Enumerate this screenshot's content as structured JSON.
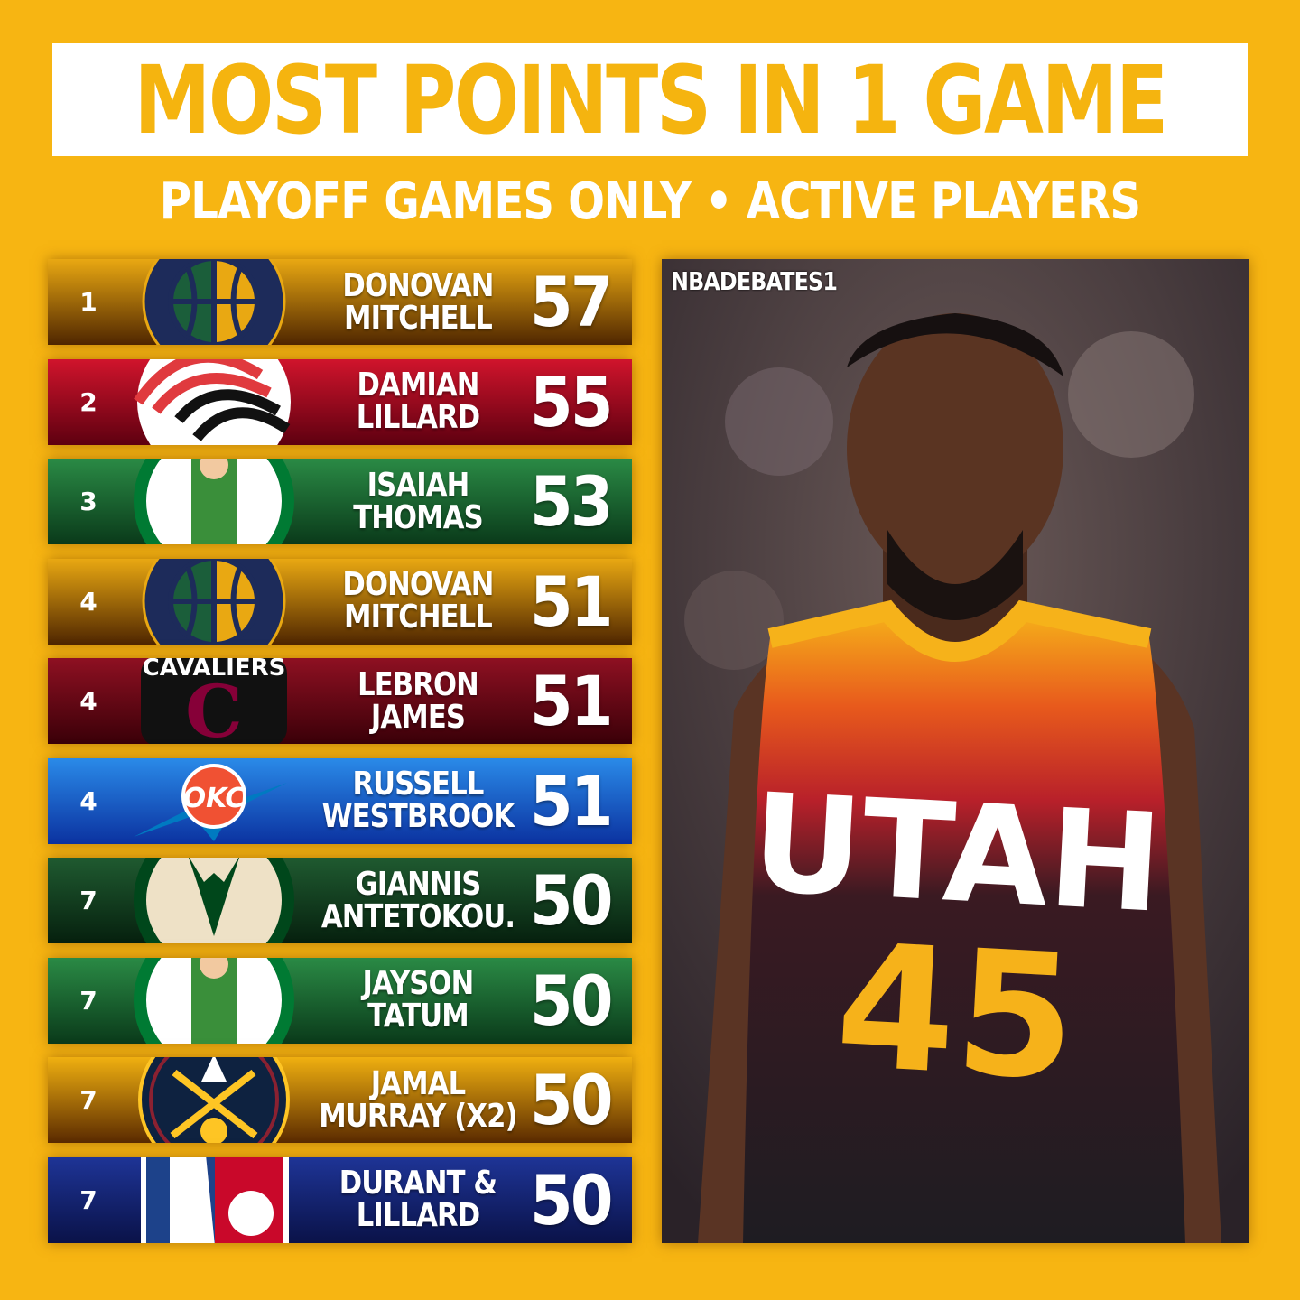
{
  "header": {
    "title": "MOST POINTS IN 1 GAME",
    "subtitle": "PLAYOFF GAMES ONLY • ACTIVE PLAYERS"
  },
  "rankings": [
    {
      "rank": "1",
      "line1": "DONOVAN",
      "line2": "MITCHELL",
      "points": "57",
      "team": "jazz",
      "c1": "#E9A812",
      "c2": "#4F2600"
    },
    {
      "rank": "2",
      "line1": "DAMIAN",
      "line2": "LILLARD",
      "points": "55",
      "team": "blazers",
      "c1": "#D0142C",
      "c2": "#5E0010"
    },
    {
      "rank": "3",
      "line1": "ISAIAH",
      "line2": "THOMAS",
      "points": "53",
      "team": "celtics",
      "c1": "#2A8A45",
      "c2": "#0A3A1A"
    },
    {
      "rank": "4",
      "line1": "DONOVAN",
      "line2": "MITCHELL",
      "points": "51",
      "team": "jazz",
      "c1": "#E9A812",
      "c2": "#4F2600"
    },
    {
      "rank": "4",
      "line1": "LEBRON",
      "line2": "JAMES",
      "points": "51",
      "team": "cavaliers",
      "c1": "#8E1022",
      "c2": "#3A0008"
    },
    {
      "rank": "4",
      "line1": "RUSSELL",
      "line2": "WESTBROOK",
      "points": "51",
      "team": "thunder",
      "c1": "#2A8AE8",
      "c2": "#0B32A0"
    },
    {
      "rank": "7",
      "line1": "GIANNIS",
      "line2": "ANTETOKOU.",
      "points": "50",
      "team": "bucks",
      "c1": "#1F5A30",
      "c2": "#06200E"
    },
    {
      "rank": "7",
      "line1": "JAYSON",
      "line2": "TATUM",
      "points": "50",
      "team": "celtics",
      "c1": "#2A8A45",
      "c2": "#0A3A1A"
    },
    {
      "rank": "7",
      "line1": "JAMAL",
      "line2": "MURRAY (X2)",
      "points": "50",
      "team": "nuggets",
      "c1": "#F0B010",
      "c2": "#5A2A00"
    },
    {
      "rank": "7",
      "line1": "DURANT &",
      "line2": "LILLARD",
      "points": "50",
      "team": "nba",
      "c1": "#1E3496",
      "c2": "#0A1248"
    }
  ],
  "photo": {
    "watermark": "NBADEBATES1",
    "jersey_text": "UTAH",
    "jersey_number": "45"
  },
  "colors": {
    "background": "#F7B512",
    "title": "#F5B40F"
  }
}
